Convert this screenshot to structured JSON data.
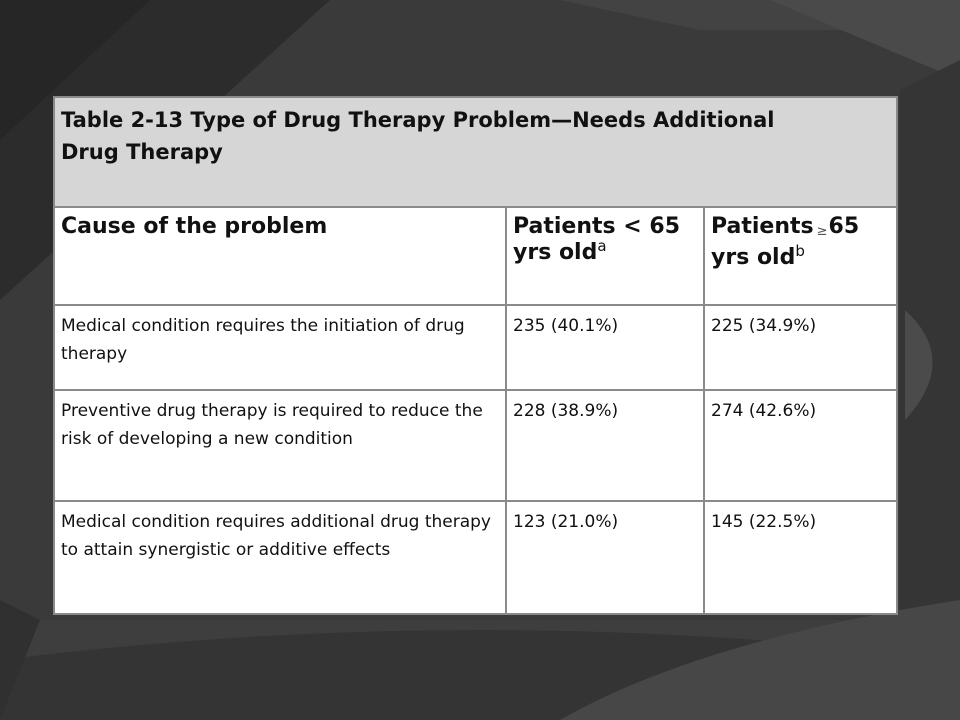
{
  "slide": {
    "background_color": "#3a3a3a"
  },
  "table": {
    "caption_line1": "Table 2-13 Type of Drug Therapy Problem—Needs Additional",
    "caption_line2": "Drug Therapy",
    "caption_color": "#7a0e12",
    "caption_bg": "#d6d6d6",
    "headers": {
      "cause": "Cause of the problem",
      "young_line1": "Patients < 65",
      "young_line2": "yrs old",
      "young_sup": "a",
      "old_word": "Patients",
      "old_symbol": "≥",
      "old_value": "65",
      "old_line2": "yrs old",
      "old_sup": "b"
    },
    "rows": [
      {
        "cause": "Medical condition requires the initiation of drug therapy",
        "young": "235 (40.1%)",
        "old": "225 (34.9%)"
      },
      {
        "cause": "Preventive drug therapy is required to reduce the risk of developing a new condition",
        "young": "228 (38.9%)",
        "old": "274 (42.6%)"
      },
      {
        "cause": "Medical condition requires additional drug therapy to attain synergistic or additive effects",
        "young": "123 (21.0%)",
        "old": "145 (22.5%)"
      }
    ]
  }
}
